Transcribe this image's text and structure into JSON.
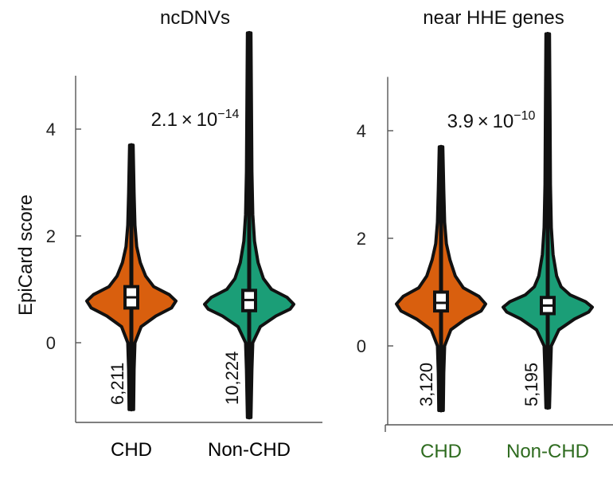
{
  "chart_data": [
    {
      "type": "violin",
      "title": "ncDNVs",
      "ylabel": "EpiCard score",
      "ylim": [
        -1.45,
        5.0
      ],
      "yticks": [
        0,
        2,
        4
      ],
      "p_value": {
        "mantissa": "2.1",
        "times": "×",
        "base": "10",
        "exponent": "−14"
      },
      "categories": [
        "CHD",
        "Non-CHD"
      ],
      "category_color": "#000000",
      "violins": [
        {
          "name": "CHD",
          "color": "#d95f0e",
          "n_label": "6,211",
          "min": -1.25,
          "max": 3.7,
          "q1": 0.65,
          "median": 0.85,
          "q3": 1.05,
          "profile": [
            [
              -1.25,
              0.05
            ],
            [
              -0.5,
              0.06
            ],
            [
              0,
              0.08
            ],
            [
              0.3,
              0.22
            ],
            [
              0.5,
              0.55
            ],
            [
              0.65,
              0.9
            ],
            [
              0.78,
              1.0
            ],
            [
              0.9,
              0.85
            ],
            [
              1.05,
              0.5
            ],
            [
              1.25,
              0.32
            ],
            [
              1.5,
              0.2
            ],
            [
              1.8,
              0.12
            ],
            [
              2.2,
              0.08
            ],
            [
              2.8,
              0.06
            ],
            [
              3.7,
              0.04
            ]
          ]
        },
        {
          "name": "Non-CHD",
          "color": "#1b9e77",
          "n_label": "10,224",
          "min": -1.4,
          "max": 5.8,
          "q1": 0.6,
          "median": 0.8,
          "q3": 0.98,
          "profile": [
            [
              -1.4,
              0.04
            ],
            [
              -0.5,
              0.06
            ],
            [
              0,
              0.08
            ],
            [
              0.3,
              0.25
            ],
            [
              0.5,
              0.6
            ],
            [
              0.63,
              0.92
            ],
            [
              0.72,
              1.0
            ],
            [
              0.85,
              0.85
            ],
            [
              1.0,
              0.5
            ],
            [
              1.2,
              0.32
            ],
            [
              1.5,
              0.2
            ],
            [
              1.9,
              0.12
            ],
            [
              2.4,
              0.08
            ],
            [
              3.2,
              0.06
            ],
            [
              4.5,
              0.05
            ],
            [
              5.8,
              0.04
            ]
          ]
        }
      ]
    },
    {
      "type": "violin",
      "title": "near HHE genes",
      "ylabel": "",
      "ylim": [
        -1.45,
        5.0
      ],
      "yticks": [
        0,
        2,
        4
      ],
      "p_value": {
        "mantissa": "3.9",
        "times": "×",
        "base": "10",
        "exponent": "−10"
      },
      "categories": [
        "CHD",
        "Non-CHD"
      ],
      "category_color": "#2e6b1f",
      "violins": [
        {
          "name": "CHD",
          "color": "#d95f0e",
          "n_label": "3,120",
          "min": -1.2,
          "max": 3.7,
          "q1": 0.65,
          "median": 0.8,
          "q3": 1.0,
          "profile": [
            [
              -1.2,
              0.05
            ],
            [
              -0.5,
              0.06
            ],
            [
              0,
              0.08
            ],
            [
              0.3,
              0.22
            ],
            [
              0.5,
              0.55
            ],
            [
              0.65,
              0.9
            ],
            [
              0.78,
              1.0
            ],
            [
              0.92,
              0.85
            ],
            [
              1.08,
              0.5
            ],
            [
              1.3,
              0.32
            ],
            [
              1.6,
              0.2
            ],
            [
              1.9,
              0.12
            ],
            [
              2.3,
              0.08
            ],
            [
              2.9,
              0.06
            ],
            [
              3.7,
              0.04
            ]
          ]
        },
        {
          "name": "Non-CHD",
          "color": "#1b9e77",
          "n_label": "5,195",
          "min": -1.15,
          "max": 5.8,
          "q1": 0.6,
          "median": 0.75,
          "q3": 0.9,
          "profile": [
            [
              -1.15,
              0.04
            ],
            [
              -0.5,
              0.06
            ],
            [
              0,
              0.08
            ],
            [
              0.3,
              0.25
            ],
            [
              0.5,
              0.6
            ],
            [
              0.63,
              0.92
            ],
            [
              0.72,
              1.0
            ],
            [
              0.82,
              0.85
            ],
            [
              0.95,
              0.5
            ],
            [
              1.1,
              0.3
            ],
            [
              1.3,
              0.2
            ],
            [
              1.7,
              0.12
            ],
            [
              2.2,
              0.08
            ],
            [
              3.0,
              0.06
            ],
            [
              4.5,
              0.05
            ],
            [
              5.8,
              0.04
            ]
          ]
        }
      ]
    }
  ]
}
